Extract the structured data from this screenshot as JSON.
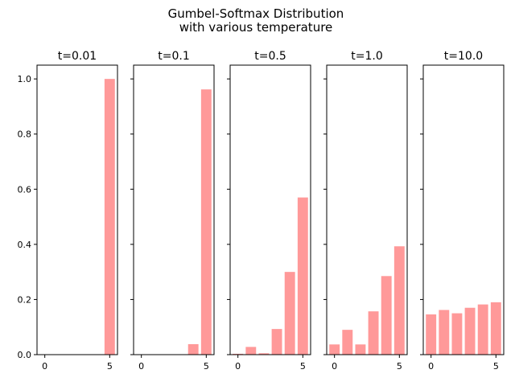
{
  "suptitle": {
    "line1": "Gumbel-Softmax Distribution",
    "line2": "with various temperature"
  },
  "chart_data": {
    "type": "bar",
    "bar_color": "#ff9999",
    "shared_y": true,
    "ylim": [
      0,
      1.05
    ],
    "y_ticks": [
      0.0,
      0.2,
      0.4,
      0.6,
      0.8,
      1.0
    ],
    "y_tick_labels": [
      "0.0",
      "0.2",
      "0.4",
      "0.6",
      "0.8",
      "1.0"
    ],
    "xlim": [
      -0.6,
      5.6
    ],
    "x_ticks": [
      0,
      5
    ],
    "x_tick_labels": [
      "0",
      "5"
    ],
    "categories": [
      0,
      1,
      2,
      3,
      4,
      5
    ],
    "grid": false,
    "panels": [
      {
        "title": "t=0.01",
        "values": [
          0.0,
          0.0,
          0.0,
          0.0,
          0.0,
          1.0
        ]
      },
      {
        "title": "t=0.1",
        "values": [
          0.0,
          0.0,
          0.0,
          0.0,
          0.038,
          0.962
        ]
      },
      {
        "title": "t=0.5",
        "values": [
          0.003,
          0.028,
          0.005,
          0.093,
          0.3,
          0.57
        ]
      },
      {
        "title": "t=1.0",
        "values": [
          0.037,
          0.09,
          0.037,
          0.157,
          0.285,
          0.393
        ]
      },
      {
        "title": "t=10.0",
        "values": [
          0.146,
          0.162,
          0.15,
          0.17,
          0.182,
          0.19
        ]
      }
    ]
  }
}
